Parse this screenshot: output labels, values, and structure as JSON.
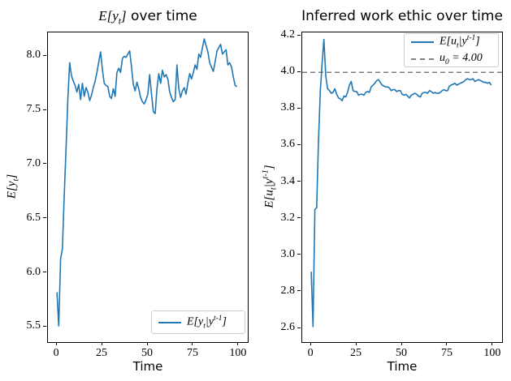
{
  "figure": {
    "background": "#ffffff"
  },
  "colors": {
    "series_blue": "#1f77b4",
    "reference_gray": "#808080",
    "legend_border": "#cccccc",
    "spine": "#000000",
    "text": "#000000"
  },
  "chart_data": [
    {
      "type": "line",
      "title_parts": {
        "math": "E[y_t]",
        "text": " over time"
      },
      "xlabel": "Time",
      "ylabel": "E[y_t]",
      "legend": {
        "position": "lower right",
        "entries": [
          {
            "label": "E[y_t|y^{t-1}]",
            "line": "solid",
            "color": "#1f77b4"
          }
        ]
      },
      "line_color": "#1f77b4",
      "xlim": [
        -4.95,
        104.95
      ],
      "ylim": [
        5.36,
        8.22
      ],
      "xticks": [
        0,
        25,
        50,
        75,
        100
      ],
      "xtick_labels": [
        "0",
        "25",
        "50",
        "75",
        "100"
      ],
      "yticks": [
        8.0,
        7.5,
        7.0,
        6.5,
        6.0,
        5.5
      ],
      "ytick_labels": [
        "8.0",
        "7.5",
        "7.0",
        "6.5",
        "6.0",
        "5.5"
      ],
      "x_start": 0,
      "x_step": 1,
      "values": [
        5.82,
        5.51,
        6.13,
        6.22,
        6.7,
        7.15,
        7.6,
        7.94,
        7.82,
        7.77,
        7.73,
        7.67,
        7.74,
        7.6,
        7.75,
        7.63,
        7.71,
        7.67,
        7.59,
        7.64,
        7.71,
        7.77,
        7.85,
        7.95,
        8.04,
        7.88,
        7.75,
        7.73,
        7.72,
        7.63,
        7.61,
        7.7,
        7.63,
        7.85,
        7.89,
        7.85,
        7.98,
        8.0,
        7.99,
        8.02,
        8.05,
        7.9,
        7.74,
        7.68,
        7.76,
        7.7,
        7.62,
        7.58,
        7.56,
        7.6,
        7.65,
        7.83,
        7.65,
        7.49,
        7.47,
        7.7,
        7.84,
        7.75,
        7.87,
        7.81,
        7.83,
        7.79,
        7.67,
        7.62,
        7.58,
        7.6,
        7.92,
        7.7,
        7.62,
        7.68,
        7.71,
        7.65,
        7.75,
        7.84,
        7.79,
        7.85,
        7.92,
        7.88,
        8.02,
        7.99,
        8.08,
        8.16,
        8.1,
        8.04,
        7.94,
        7.9,
        7.86,
        7.95,
        8.05,
        8.08,
        8.11,
        8.02,
        8.04,
        8.06,
        7.92,
        7.94,
        7.9,
        7.81,
        7.73,
        7.72
      ]
    },
    {
      "type": "line",
      "title_parts": {
        "math": "",
        "text": "Inferred work ethic over time"
      },
      "xlabel": "Time",
      "ylabel": "E[u_t|y^{t-1}]",
      "legend": {
        "position": "upper right",
        "entries": [
          {
            "label": "E[u_t|y^{t-1}]",
            "line": "solid",
            "color": "#1f77b4"
          },
          {
            "label": "u_0 = 4.00",
            "line": "dashed",
            "color": "#808080"
          }
        ]
      },
      "line_color": "#1f77b4",
      "hline": {
        "value": 4.0,
        "color": "#808080",
        "style": "dashed"
      },
      "xlim": [
        -4.95,
        104.95
      ],
      "ylim": [
        2.525,
        4.218
      ],
      "xticks": [
        0,
        25,
        50,
        75,
        100
      ],
      "xtick_labels": [
        "0",
        "25",
        "50",
        "75",
        "100"
      ],
      "yticks": [
        4.2,
        4.0,
        3.8,
        3.6,
        3.4,
        3.2,
        3.0,
        2.8,
        2.6
      ],
      "ytick_labels": [
        "4.2",
        "4.0",
        "3.8",
        "3.6",
        "3.4",
        "3.2",
        "3.0",
        "2.8",
        "2.6"
      ],
      "x_start": 0,
      "x_step": 1,
      "values": [
        2.91,
        2.61,
        3.25,
        3.26,
        3.62,
        3.9,
        4.05,
        4.18,
        3.98,
        3.91,
        3.9,
        3.885,
        3.89,
        3.91,
        3.88,
        3.86,
        3.855,
        3.845,
        3.87,
        3.865,
        3.89,
        3.93,
        3.95,
        3.9,
        3.895,
        3.895,
        3.875,
        3.88,
        3.88,
        3.875,
        3.89,
        3.895,
        3.89,
        3.92,
        3.93,
        3.94,
        3.955,
        3.96,
        3.945,
        3.93,
        3.925,
        3.92,
        3.92,
        3.915,
        3.9,
        3.905,
        3.905,
        3.895,
        3.9,
        3.9,
        3.88,
        3.875,
        3.88,
        3.87,
        3.86,
        3.875,
        3.88,
        3.885,
        3.88,
        3.87,
        3.865,
        3.885,
        3.89,
        3.89,
        3.885,
        3.9,
        3.895,
        3.885,
        3.89,
        3.885,
        3.885,
        3.89,
        3.9,
        3.905,
        3.9,
        3.9,
        3.925,
        3.93,
        3.935,
        3.94,
        3.93,
        3.935,
        3.94,
        3.945,
        3.95,
        3.96,
        3.965,
        3.96,
        3.96,
        3.965,
        3.95,
        3.955,
        3.96,
        3.955,
        3.95,
        3.945,
        3.945,
        3.94,
        3.945,
        3.93
      ]
    }
  ]
}
